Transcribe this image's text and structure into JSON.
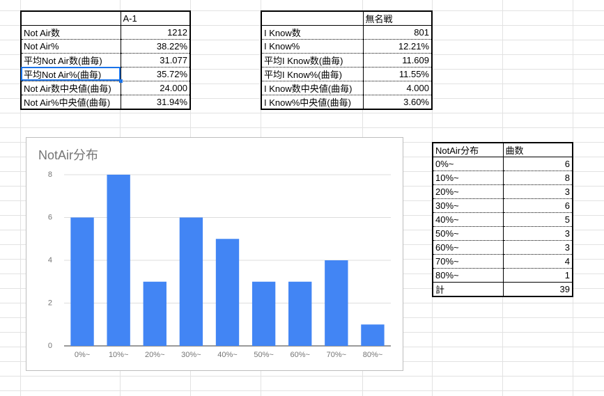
{
  "table1": {
    "header": "A-1",
    "rows": [
      [
        "Not Air数",
        "1212"
      ],
      [
        "Not Air%",
        "38.22%"
      ],
      [
        "平均Not Air数(曲毎)",
        "31.077"
      ],
      [
        "平均Not Air%(曲毎)",
        "35.72%"
      ],
      [
        "Not Air数中央値(曲毎)",
        "24.000"
      ],
      [
        "Not Air%中央値(曲毎)",
        "31.94%"
      ]
    ]
  },
  "table2": {
    "header": "無名戦",
    "rows": [
      [
        "I Know数",
        "801"
      ],
      [
        "I Know%",
        "12.21%"
      ],
      [
        "平均I Know数(曲毎)",
        "11.609"
      ],
      [
        "平均I Know%(曲毎)",
        "11.55%"
      ],
      [
        "I Know数中央値(曲毎)",
        "4.000"
      ],
      [
        "I Know%中央値(曲毎)",
        "3.60%"
      ]
    ]
  },
  "table3": {
    "header": [
      "NotAir分布",
      "曲数"
    ],
    "rows": [
      [
        "0%~",
        "6"
      ],
      [
        "10%~",
        "8"
      ],
      [
        "20%~",
        "3"
      ],
      [
        "30%~",
        "6"
      ],
      [
        "40%~",
        "5"
      ],
      [
        "50%~",
        "3"
      ],
      [
        "60%~",
        "3"
      ],
      [
        "70%~",
        "4"
      ],
      [
        "80%~",
        "1"
      ],
      [
        "計",
        "39"
      ]
    ]
  },
  "chart_data": {
    "type": "bar",
    "title": "NotAir分布",
    "categories": [
      "0%~",
      "10%~",
      "20%~",
      "30%~",
      "40%~",
      "50%~",
      "60%~",
      "70%~",
      "80%~"
    ],
    "values": [
      6,
      8,
      3,
      6,
      5,
      3,
      3,
      4,
      1
    ],
    "color": "#4285f4",
    "ylim": [
      0,
      8
    ],
    "yticks": [
      0,
      2,
      4,
      6,
      8
    ],
    "grid": true
  }
}
